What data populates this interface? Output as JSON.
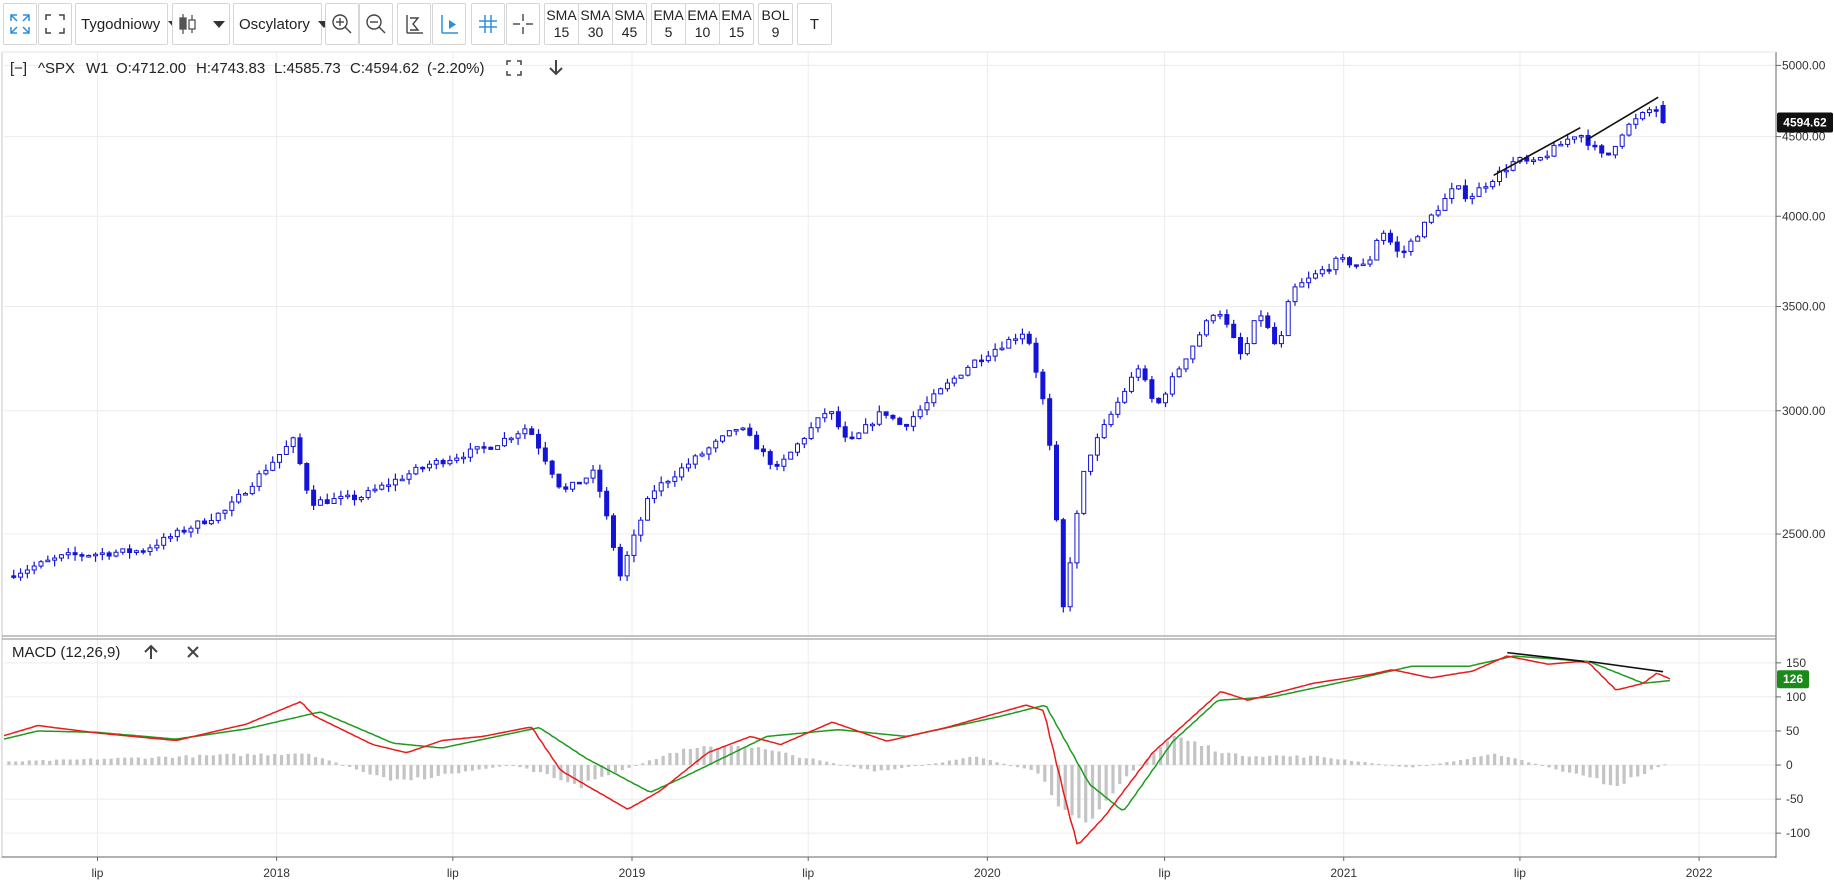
{
  "toolbar": {
    "interval": "Tygodniowy",
    "oscillators": "Oscylatory",
    "indicators": [
      {
        "name": "SMA",
        "value": "15"
      },
      {
        "name": "SMA",
        "value": "30"
      },
      {
        "name": "SMA",
        "value": "45"
      },
      {
        "name": "EMA",
        "value": "5"
      },
      {
        "name": "EMA",
        "value": "10"
      },
      {
        "name": "EMA",
        "value": "15"
      },
      {
        "name": "BOL",
        "value": "9"
      }
    ],
    "text_tool": "T"
  },
  "price_panel": {
    "collapse": "[−]",
    "symbol": "^SPX",
    "interval": "W1",
    "open": "O:4712.00",
    "high": "H:4743.83",
    "low": "L:4585.73",
    "close": "C:4594.62",
    "change": "(-2.20%)",
    "last_label": "4594.62",
    "y_ticks": [
      "5000.00",
      "4500.00",
      "4000.00",
      "3500.00",
      "3000.00",
      "2500.00"
    ]
  },
  "macd_panel": {
    "title": "MACD (12,26,9)",
    "last_label": "126",
    "y_ticks": [
      "150",
      "100",
      "50",
      "0",
      "-50",
      "-100"
    ]
  },
  "x_ticks": [
    "lip",
    "2018",
    "lip",
    "2019",
    "lip",
    "2020",
    "lip",
    "2021",
    "lip",
    "2022"
  ],
  "colors": {
    "candle": "#1414d8",
    "macd_line": "#e81c1c",
    "signal_line": "#1e9a1e",
    "histogram": "#c4c4c4",
    "last_price_bg": "#111111",
    "macd_label_bg": "#1a8a1a",
    "accent": "#2b8fe0"
  },
  "chart_data": [
    {
      "type": "candlestick",
      "title": "^SPX W1",
      "y_scale": "log",
      "ylim": [
        2150,
        5100
      ],
      "x_range": [
        "2017-03-27",
        "2022-03-21"
      ],
      "anchors": [
        [
          "2017-04-03",
          2350
        ],
        [
          "2017-06-01",
          2420
        ],
        [
          "2017-08-20",
          2440
        ],
        [
          "2017-11-15",
          2590
        ],
        [
          "2018-01-22",
          2870
        ],
        [
          "2018-02-09",
          2620
        ],
        [
          "2018-04-01",
          2640
        ],
        [
          "2018-06-10",
          2770
        ],
        [
          "2018-08-15",
          2850
        ],
        [
          "2018-09-20",
          2930
        ],
        [
          "2018-10-26",
          2660
        ],
        [
          "2018-11-28",
          2740
        ],
        [
          "2018-12-24",
          2350
        ],
        [
          "2019-01-25",
          2660
        ],
        [
          "2019-04-25",
          2930
        ],
        [
          "2019-06-03",
          2750
        ],
        [
          "2019-07-26",
          3010
        ],
        [
          "2019-08-15",
          2850
        ],
        [
          "2019-09-20",
          3000
        ],
        [
          "2019-10-10",
          2930
        ],
        [
          "2019-12-20",
          3220
        ],
        [
          "2020-02-14",
          3380
        ],
        [
          "2020-03-06",
          2970
        ],
        [
          "2020-03-23",
          2240
        ],
        [
          "2020-04-15",
          2780
        ],
        [
          "2020-06-08",
          3200
        ],
        [
          "2020-06-26",
          3010
        ],
        [
          "2020-08-28",
          3500
        ],
        [
          "2020-09-23",
          3240
        ],
        [
          "2020-10-10",
          3480
        ],
        [
          "2020-10-30",
          3270
        ],
        [
          "2020-11-12",
          3580
        ],
        [
          "2020-12-31",
          3750
        ],
        [
          "2021-01-29",
          3710
        ],
        [
          "2021-02-12",
          3930
        ],
        [
          "2021-03-04",
          3770
        ],
        [
          "2021-04-30",
          4180
        ],
        [
          "2021-05-13",
          4110
        ],
        [
          "2021-07-02",
          4350
        ],
        [
          "2021-07-18",
          4320
        ],
        [
          "2021-09-03",
          4530
        ],
        [
          "2021-10-01",
          4350
        ],
        [
          "2021-10-20",
          4550
        ],
        [
          "2021-11-19",
          4700
        ],
        [
          "2021-12-03",
          4594.62
        ]
      ],
      "last_candle": {
        "open": 4712.0,
        "high": 4743.83,
        "low": 4585.73,
        "close": 4594.62,
        "change_pct": -2.2
      },
      "annotations": [
        {
          "type": "trendline",
          "from": [
            "2021-06-04",
            4250
          ],
          "to": [
            "2021-09-01",
            4560
          ]
        },
        {
          "type": "trendline",
          "from": [
            "2021-09-08",
            4480
          ],
          "to": [
            "2021-11-20",
            4770
          ]
        }
      ]
    },
    {
      "type": "line",
      "title": "MACD (12,26,9)",
      "ylim": [
        -135,
        185
      ],
      "series": [
        {
          "name": "MACD",
          "color": "#e81c1c",
          "points": [
            [
              "2017-03-27",
              43
            ],
            [
              "2017-05-01",
              58
            ],
            [
              "2017-07-01",
              47
            ],
            [
              "2017-09-20",
              36
            ],
            [
              "2017-12-01",
              60
            ],
            [
              "2018-01-26",
              93
            ],
            [
              "2018-02-09",
              72
            ],
            [
              "2018-04-10",
              30
            ],
            [
              "2018-05-15",
              18
            ],
            [
              "2018-06-20",
              36
            ],
            [
              "2018-08-01",
              42
            ],
            [
              "2018-09-20",
              56
            ],
            [
              "2018-10-20",
              -8
            ],
            [
              "2018-12-28",
              -65
            ],
            [
              "2019-01-30",
              -38
            ],
            [
              "2019-03-20",
              18
            ],
            [
              "2019-05-03",
              42
            ],
            [
              "2019-06-03",
              30
            ],
            [
              "2019-07-26",
              63
            ],
            [
              "2019-09-20",
              35
            ],
            [
              "2019-11-20",
              55
            ],
            [
              "2020-02-10",
              88
            ],
            [
              "2020-02-28",
              80
            ],
            [
              "2020-03-23",
              -60
            ],
            [
              "2020-04-03",
              -118
            ],
            [
              "2020-05-01",
              -75
            ],
            [
              "2020-06-19",
              18
            ],
            [
              "2020-08-28",
              108
            ],
            [
              "2020-09-25",
              95
            ],
            [
              "2020-12-01",
              120
            ],
            [
              "2021-01-29",
              133
            ],
            [
              "2021-02-20",
              140
            ],
            [
              "2021-04-01",
              128
            ],
            [
              "2021-05-14",
              138
            ],
            [
              "2021-06-18",
              160
            ],
            [
              "2021-07-30",
              148
            ],
            [
              "2021-09-01",
              152
            ],
            [
              "2021-09-10",
              150
            ],
            [
              "2021-10-08",
              110
            ],
            [
              "2021-11-05",
              120
            ],
            [
              "2021-11-19",
              135
            ],
            [
              "2021-12-03",
              126
            ]
          ]
        },
        {
          "name": "Signal",
          "color": "#1e9a1e",
          "points": [
            [
              "2017-03-27",
              38
            ],
            [
              "2017-05-01",
              50
            ],
            [
              "2017-07-01",
              48
            ],
            [
              "2017-09-20",
              38
            ],
            [
              "2017-12-01",
              53
            ],
            [
              "2018-02-15",
              78
            ],
            [
              "2018-05-01",
              32
            ],
            [
              "2018-06-20",
              25
            ],
            [
              "2018-09-28",
              55
            ],
            [
              "2018-11-15",
              10
            ],
            [
              "2019-01-20",
              -40
            ],
            [
              "2019-02-20",
              -20
            ],
            [
              "2019-05-20",
              42
            ],
            [
              "2019-08-01",
              52
            ],
            [
              "2019-10-10",
              42
            ],
            [
              "2020-01-10",
              70
            ],
            [
              "2020-03-01",
              88
            ],
            [
              "2020-04-15",
              -28
            ],
            [
              "2020-05-20",
              -68
            ],
            [
              "2020-07-10",
              35
            ],
            [
              "2020-08-25",
              95
            ],
            [
              "2020-10-20",
              100
            ],
            [
              "2021-01-10",
              125
            ],
            [
              "2021-03-12",
              145
            ],
            [
              "2021-05-10",
              145
            ],
            [
              "2021-06-25",
              160
            ],
            [
              "2021-09-10",
              152
            ],
            [
              "2021-11-05",
              120
            ],
            [
              "2021-12-03",
              124
            ]
          ]
        },
        {
          "name": "Histogram",
          "color": "#c4c4c4",
          "type": "bar",
          "points": [
            [
              "2017-04-01",
              5
            ],
            [
              "2018-02-01",
              18
            ],
            [
              "2018-05-01",
              -25
            ],
            [
              "2018-09-01",
              0
            ],
            [
              "2018-11-10",
              -30
            ],
            [
              "2019-02-15",
              20
            ],
            [
              "2019-04-20",
              30
            ],
            [
              "2019-09-10",
              -10
            ],
            [
              "2019-12-20",
              12
            ],
            [
              "2020-02-20",
              -10
            ],
            [
              "2020-04-01",
              -95
            ],
            [
              "2020-05-20",
              -20
            ],
            [
              "2020-07-10",
              42
            ],
            [
              "2020-09-10",
              15
            ],
            [
              "2020-12-10",
              12
            ],
            [
              "2021-03-10",
              -4
            ],
            [
              "2021-06-10",
              16
            ],
            [
              "2021-10-08",
              -30
            ],
            [
              "2021-12-03",
              5
            ]
          ]
        }
      ],
      "annotations": [
        {
          "type": "trendline",
          "from": [
            "2021-06-18",
            165
          ],
          "to": [
            "2021-09-05",
            152
          ]
        },
        {
          "type": "trendline",
          "from": [
            "2021-09-10",
            152
          ],
          "to": [
            "2021-11-25",
            137
          ]
        }
      ]
    }
  ]
}
